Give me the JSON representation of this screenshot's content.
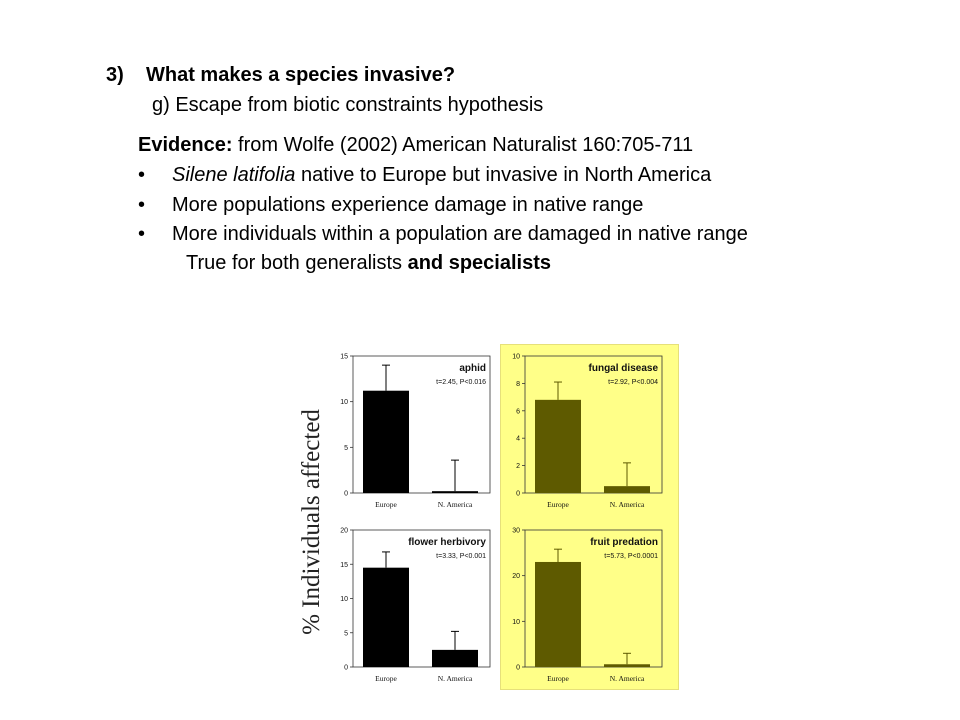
{
  "heading": {
    "number": "3)",
    "text": "What makes a species invasive?"
  },
  "subheading": "g) Escape from biotic constraints hypothesis",
  "evidence": {
    "label": "Evidence:",
    "text": " from Wolfe (2002) American Naturalist 160:705-711"
  },
  "bullets": [
    {
      "marker": "•",
      "italic": "Silene latifolia",
      "text": " native to Europe but invasive in North America"
    },
    {
      "marker": "•",
      "italic": "",
      "text": "More populations experience damage in native range"
    },
    {
      "marker": "•",
      "italic": "",
      "text": "More individuals within a population are damaged in native range"
    }
  ],
  "note": {
    "text": "True for both generalists ",
    "bold": "and specialists"
  },
  "figure": {
    "y_axis_title": "% Individuals affected",
    "colors": {
      "highlight": "#ffff88",
      "bar_black": "#000000",
      "bar_olive": "#5e5a00",
      "axis": "#333333"
    }
  },
  "chart_data": [
    {
      "type": "bar",
      "title": "aphid",
      "stat": "t=2.45, P<0.016",
      "categories": [
        "Europe",
        "N. America"
      ],
      "values": [
        11.2,
        0.2
      ],
      "errors": [
        2.8,
        3.4
      ],
      "ylim": [
        0,
        15
      ],
      "yticks": [
        0,
        5,
        10,
        15
      ],
      "ylabel": "% Individuals affected",
      "xlabel": "",
      "highlighted": false
    },
    {
      "type": "bar",
      "title": "fungal disease",
      "stat": "t=2.92, P<0.004",
      "categories": [
        "Europe",
        "N. America"
      ],
      "values": [
        6.8,
        0.5
      ],
      "errors": [
        1.3,
        1.7
      ],
      "ylim": [
        0,
        10
      ],
      "yticks": [
        0,
        2,
        4,
        6,
        8,
        10
      ],
      "ylabel": "% Individuals affected",
      "xlabel": "",
      "highlighted": true
    },
    {
      "type": "bar",
      "title": "flower herbivory",
      "stat": "t=3.33, P<0.001",
      "categories": [
        "Europe",
        "N. America"
      ],
      "values": [
        14.5,
        2.5
      ],
      "errors": [
        2.3,
        2.7
      ],
      "ylim": [
        0,
        20
      ],
      "yticks": [
        0,
        5,
        10,
        15,
        20
      ],
      "ylabel": "% Individuals affected",
      "xlabel": "",
      "highlighted": false
    },
    {
      "type": "bar",
      "title": "fruit predation",
      "stat": "t=5.73, P<0.0001",
      "categories": [
        "Europe",
        "N. America"
      ],
      "values": [
        23.0,
        0.6
      ],
      "errors": [
        2.8,
        2.4
      ],
      "ylim": [
        0,
        30
      ],
      "yticks": [
        0,
        10,
        20,
        30
      ],
      "ylabel": "% Individuals affected",
      "xlabel": "",
      "highlighted": true
    }
  ]
}
